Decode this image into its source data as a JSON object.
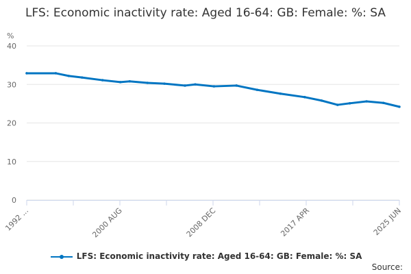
{
  "chart_data": {
    "type": "line",
    "title": "LFS: Economic inactivity rate: Aged 16-64: GB: Female: %: SA",
    "ylabel": "%",
    "ylim": [
      0,
      40
    ],
    "yticks": [
      0,
      10,
      20,
      30,
      40
    ],
    "xlim": [
      "1992-04",
      "2025-06"
    ],
    "xtick_labels": [
      "1992 ...",
      "2000 AUG",
      "2008 DEC",
      "2017 APR",
      "2025 JUN"
    ],
    "xtick_dates": [
      "1992-04",
      "2000-08",
      "2008-12",
      "2017-04",
      "2025-06"
    ],
    "grid": true,
    "legend_position": "bottom",
    "color": "#0075c2",
    "series": [
      {
        "name": "LFS: Economic inactivity rate: Aged 16-64: GB: Female: %: SA",
        "x": [
          "1992-04",
          "1994-11",
          "1996-01",
          "1997-03",
          "1999-01",
          "2000-08",
          "2001-06",
          "2003-01",
          "2004-07",
          "2006-05",
          "2007-04",
          "2008-12",
          "2010-12",
          "2012-10",
          "2014-11",
          "2017-01",
          "2018-07",
          "2019-12",
          "2021-01",
          "2022-07",
          "2024-01",
          "2025-06"
        ],
        "values": [
          32.9,
          32.9,
          32.2,
          31.8,
          31.1,
          30.6,
          30.8,
          30.4,
          30.2,
          29.7,
          30.0,
          29.5,
          29.7,
          28.6,
          27.6,
          26.7,
          25.8,
          24.7,
          25.1,
          25.6,
          25.2,
          24.2
        ]
      }
    ]
  },
  "source_label": "Source:"
}
